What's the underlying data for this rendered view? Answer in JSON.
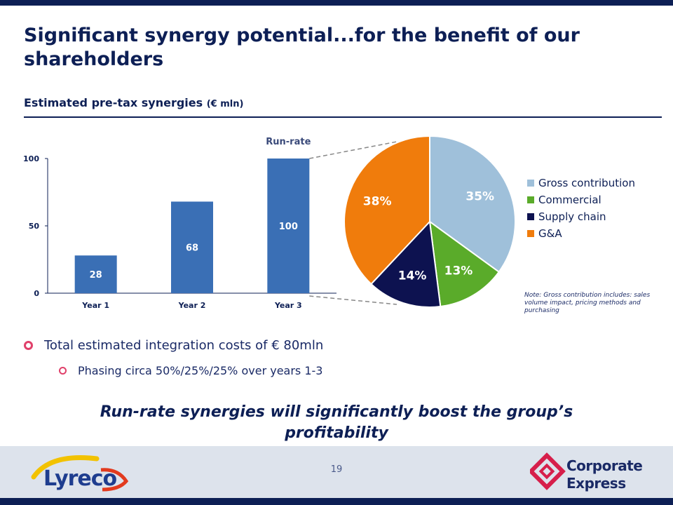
{
  "slide": {
    "title": "Significant synergy potential...for the benefit of our shareholders",
    "subtitle": "Estimated pre-tax synergies",
    "subtitle_unit": "(€ mln)",
    "note": "Note: Gross contribution includes: sales volume impact, pricing methods and purchasing",
    "bullets": [
      "Total estimated integration costs of € 80mln",
      "Phasing circa 50%/25%/25% over years 1-3"
    ],
    "conclusion": "Run-rate synergies will significantly boost the group’s profitability",
    "page_number": "19",
    "logos": {
      "left": "Lyreco",
      "right_line1": "Corporate",
      "right_line2": "Express"
    }
  },
  "chart_data": [
    {
      "type": "bar",
      "categories": [
        "Year 1",
        "Year 2",
        "Year 3"
      ],
      "values": [
        28,
        68,
        100
      ],
      "data_labels": [
        "28",
        "68",
        "100"
      ],
      "yticks": [
        0,
        50,
        100
      ],
      "ylim": [
        0,
        100
      ],
      "annotation": "Run-rate",
      "color": "#3a6fb5"
    },
    {
      "type": "pie",
      "legend_position": "right",
      "slices": [
        {
          "name": "Gross contribution",
          "value": 35,
          "label": "35%",
          "color": "#9fc0da"
        },
        {
          "name": "Commercial",
          "value": 13,
          "label": "13%",
          "color": "#5aab2a"
        },
        {
          "name": "Supply chain",
          "value": 14,
          "label": "14%",
          "color": "#0d1250"
        },
        {
          "name": "G&A",
          "value": 38,
          "label": "38%",
          "color": "#f07c0c"
        }
      ]
    }
  ]
}
